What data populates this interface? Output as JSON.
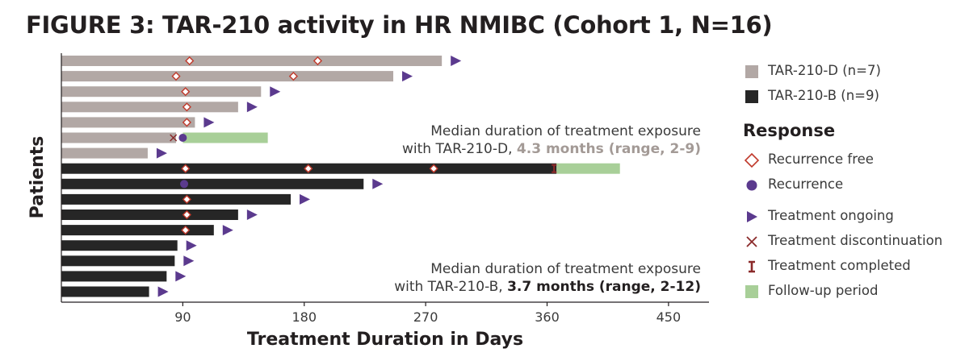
{
  "title": "FIGURE 3: TAR-210 activity in HR NMIBC (Cohort 1, N=16)",
  "chart_data": {
    "type": "swimmer",
    "title": "FIGURE 3: TAR-210 activity in HR NMIBC (Cohort 1, N=16)",
    "xlabel": "Treatment Duration in Days",
    "ylabel": "Patients",
    "xlim": [
      0,
      480
    ],
    "xticks": [
      90,
      180,
      270,
      360,
      450
    ],
    "colors": {
      "tar210d": "#b2a8a5",
      "tar210b": "#262626",
      "followup": "#a8cf98",
      "ongoing": "#5b3a8e",
      "recurrence_free": "#c0392b",
      "recurrence": "#5b3a8e",
      "discontinuation": "#8b2a2a",
      "completed": "#8b2a2a"
    },
    "patients": [
      {
        "group": "TAR-210-D",
        "duration": 282,
        "recurrence_free": [
          95,
          190
        ],
        "ongoing": true
      },
      {
        "group": "TAR-210-D",
        "duration": 246,
        "recurrence_free": [
          85,
          172
        ],
        "ongoing": true
      },
      {
        "group": "TAR-210-D",
        "duration": 148,
        "recurrence_free": [
          92
        ],
        "ongoing": true
      },
      {
        "group": "TAR-210-D",
        "duration": 131,
        "recurrence_free": [
          93
        ],
        "ongoing": true
      },
      {
        "group": "TAR-210-D",
        "duration": 99,
        "recurrence_free": [
          93
        ],
        "ongoing": true
      },
      {
        "group": "TAR-210-D",
        "duration": 85,
        "discontinuation": 83,
        "recurrence": 90,
        "followup": [
          90,
          153
        ]
      },
      {
        "group": "TAR-210-D",
        "duration": 64,
        "ongoing": true
      },
      {
        "group": "TAR-210-B",
        "duration": 367,
        "recurrence_free": [
          92,
          183,
          276
        ],
        "completed": 367,
        "followup": [
          367,
          414
        ]
      },
      {
        "group": "TAR-210-B",
        "duration": 224,
        "recurrence": 91,
        "ongoing": true
      },
      {
        "group": "TAR-210-B",
        "duration": 170,
        "recurrence_free": [
          93
        ],
        "ongoing": true
      },
      {
        "group": "TAR-210-B",
        "duration": 131,
        "recurrence_free": [
          93
        ],
        "ongoing": true
      },
      {
        "group": "TAR-210-B",
        "duration": 113,
        "recurrence_free": [
          92
        ],
        "ongoing": true
      },
      {
        "group": "TAR-210-B",
        "duration": 86,
        "ongoing": true
      },
      {
        "group": "TAR-210-B",
        "duration": 84,
        "ongoing": true
      },
      {
        "group": "TAR-210-B",
        "duration": 78,
        "ongoing": true
      },
      {
        "group": "TAR-210-B",
        "duration": 65,
        "ongoing": true
      }
    ]
  },
  "annotations": {
    "d_line1": "Median duration of treatment exposure",
    "d_prefix": "with TAR-210-D, ",
    "d_highlight": "4.3 months (range, 2-9)",
    "b_line1": "Median duration of treatment exposure",
    "b_prefix": "with TAR-210-B, ",
    "b_highlight": "3.7 months (range, 2-12)"
  },
  "legend": {
    "tar210d": "TAR-210-D (n=7)",
    "tar210b": "TAR-210-B (n=9)",
    "response_heading": "Response",
    "recurrence_free": "Recurrence free",
    "recurrence": "Recurrence",
    "ongoing": "Treatment ongoing",
    "discontinuation": "Treatment discontinuation",
    "completed": "Treatment completed",
    "followup": "Follow-up period"
  }
}
